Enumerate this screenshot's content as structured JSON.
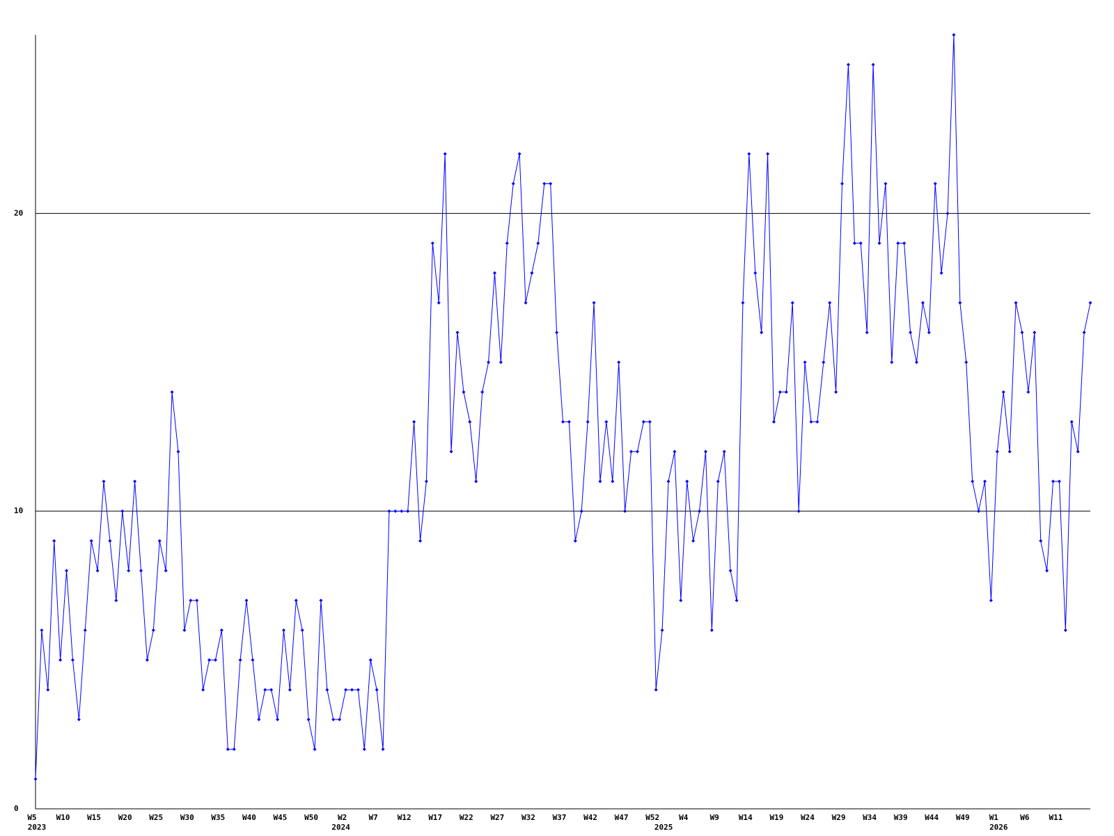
{
  "chart_data": {
    "type": "line",
    "categories": [
      "W5",
      null,
      null,
      null,
      null,
      "W10",
      null,
      null,
      null,
      null,
      "W15",
      null,
      null,
      null,
      null,
      "W20",
      null,
      null,
      null,
      null,
      "W25",
      null,
      null,
      null,
      null,
      "W30",
      null,
      null,
      null,
      null,
      "W35",
      null,
      null,
      null,
      null,
      "W40",
      null,
      null,
      null,
      null,
      "W45",
      null,
      null,
      null,
      null,
      "W50",
      null,
      null,
      null,
      null,
      "W2",
      null,
      null,
      null,
      null,
      "W7",
      null,
      null,
      null,
      null,
      "W12",
      null,
      null,
      null,
      null,
      "W17",
      null,
      null,
      null,
      null,
      "W22",
      null,
      null,
      null,
      null,
      "W27",
      null,
      null,
      null,
      null,
      "W32",
      null,
      null,
      null,
      null,
      "W37",
      null,
      null,
      null,
      null,
      "W42",
      null,
      null,
      null,
      null,
      "W47",
      null,
      null,
      null,
      null,
      "W52",
      null,
      null,
      null,
      null,
      "W4",
      null,
      null,
      null,
      null,
      "W9",
      null,
      null,
      null,
      null,
      "W14",
      null,
      null,
      null,
      null,
      "W19",
      null,
      null,
      null,
      null,
      "W24",
      null,
      null,
      null,
      null,
      "W29",
      null,
      null,
      null,
      null,
      "W34",
      null,
      null,
      null,
      null,
      "W39",
      null,
      null,
      null,
      null,
      "W44",
      null,
      null,
      null,
      null,
      "W49",
      null,
      null,
      null,
      null,
      "W1",
      null,
      null,
      null,
      null,
      "W6",
      null,
      null,
      null,
      null,
      "W11",
      null,
      null,
      null,
      null,
      null
    ],
    "category_years": [
      "2023",
      null,
      null,
      null,
      null,
      null,
      null,
      null,
      null,
      null,
      null,
      null,
      null,
      null,
      null,
      null,
      null,
      null,
      null,
      null,
      null,
      null,
      null,
      null,
      null,
      null,
      null,
      null,
      null,
      null,
      null,
      null,
      null,
      null,
      null,
      null,
      null,
      null,
      null,
      null,
      null,
      null,
      null,
      null,
      null,
      null,
      null,
      null,
      null,
      "2024",
      null,
      null,
      null,
      null,
      null,
      null,
      null,
      null,
      null,
      null,
      null,
      null,
      null,
      null,
      null,
      null,
      null,
      null,
      null,
      null,
      null,
      null,
      null,
      null,
      null,
      null,
      null,
      null,
      null,
      null,
      null,
      null,
      null,
      null,
      null,
      null,
      null,
      null,
      null,
      null,
      null,
      null,
      null,
      null,
      null,
      null,
      null,
      null,
      null,
      null,
      null,
      "2025",
      null,
      null,
      null,
      null,
      null,
      null,
      null,
      null,
      null,
      null,
      null,
      null,
      null,
      null,
      null,
      null,
      null,
      null,
      null,
      null,
      null,
      null,
      null,
      null,
      null,
      null,
      null,
      null,
      null,
      null,
      null,
      null,
      null,
      null,
      null,
      null,
      null,
      null,
      null,
      null,
      null,
      null,
      null,
      null,
      null,
      null,
      null,
      null,
      null,
      null,
      null,
      null,
      null,
      "2026",
      null,
      null,
      null,
      null,
      null,
      null,
      null,
      null,
      null,
      null,
      null,
      null,
      null,
      null,
      null
    ],
    "series": [
      {
        "color": "#0000ff",
        "values": [
          1,
          6,
          4,
          9,
          5,
          8,
          5,
          3,
          6,
          9,
          8,
          11,
          9,
          7,
          10,
          8,
          11,
          8,
          5,
          6,
          9,
          8,
          14,
          12,
          6,
          7,
          7,
          4,
          5,
          5,
          6,
          2,
          2,
          5,
          7,
          5,
          3,
          4,
          4,
          3,
          6,
          4,
          7,
          6,
          3,
          2,
          7,
          4,
          3,
          3,
          4,
          4,
          4,
          2,
          5,
          4,
          2,
          10,
          10,
          10,
          10,
          13,
          9,
          11,
          19,
          17,
          22,
          12,
          16,
          14,
          13,
          11,
          14,
          15,
          18,
          15,
          19,
          21,
          22,
          17,
          18,
          19,
          21,
          21,
          16,
          13,
          13,
          9,
          10,
          13,
          17,
          11,
          13,
          11,
          15,
          10,
          12,
          12,
          13,
          13,
          4,
          6,
          11,
          12,
          7,
          11,
          9,
          10,
          12,
          6,
          11,
          12,
          8,
          7,
          17,
          22,
          18,
          16,
          22,
          13,
          14,
          14,
          17,
          10,
          15,
          13,
          13,
          15,
          17,
          14,
          21,
          25,
          19,
          19,
          16,
          25,
          19,
          21,
          15,
          19,
          19,
          16,
          15,
          17,
          16,
          21,
          18,
          20,
          26,
          17,
          15,
          11,
          10,
          11,
          7,
          12,
          14,
          12,
          17,
          16,
          14,
          16,
          9,
          8,
          11,
          11,
          6,
          13,
          12,
          16,
          17
        ]
      }
    ],
    "ylim": [
      0,
      26
    ],
    "yticks": [
      0,
      10,
      20
    ],
    "grid": true
  }
}
